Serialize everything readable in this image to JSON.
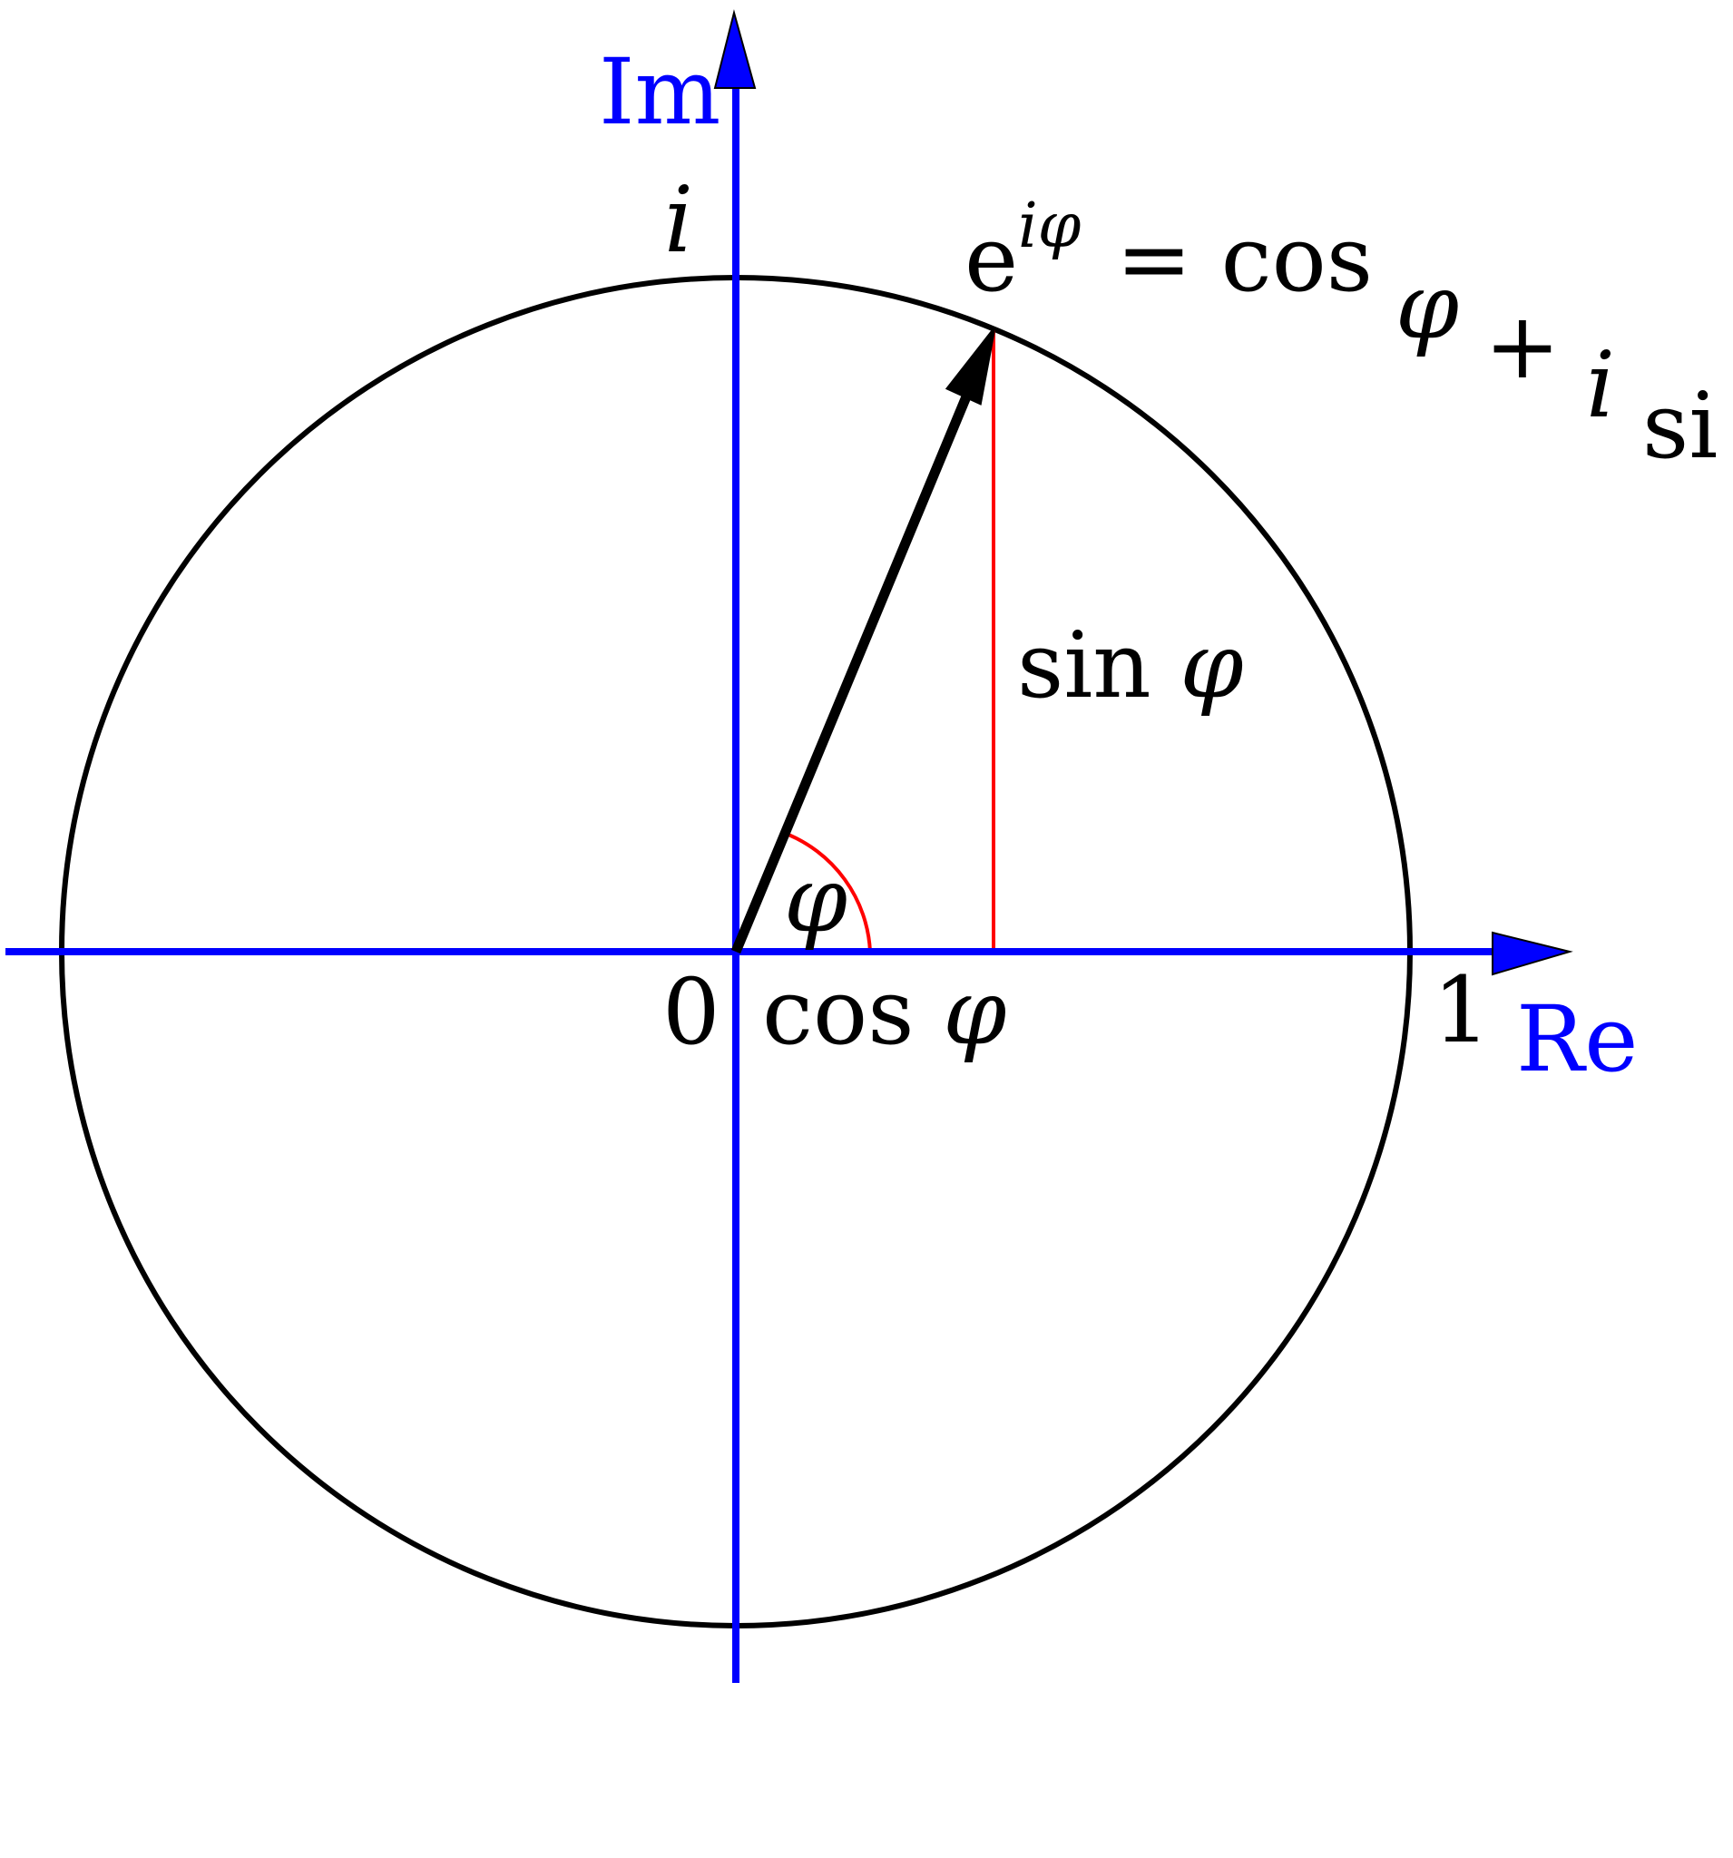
{
  "axes": {
    "real_label": "Re",
    "imaginary_label": "Im",
    "color": "#0000ff"
  },
  "labels": {
    "origin": "0",
    "one": "1",
    "i": "i",
    "phi": "φ",
    "sin_word": "sin",
    "cos_word": "cos"
  },
  "formula": {
    "base": "e",
    "exponent": "iφ",
    "equals_cos": "= cos",
    "phi": "φ",
    "plus": "+",
    "i": "i",
    "sin_partial": "si"
  },
  "colors": {
    "circle": "#000000",
    "vector": "#000000",
    "projection": "#ff0000",
    "angle_arc": "#ff0000",
    "text": "#000000"
  }
}
